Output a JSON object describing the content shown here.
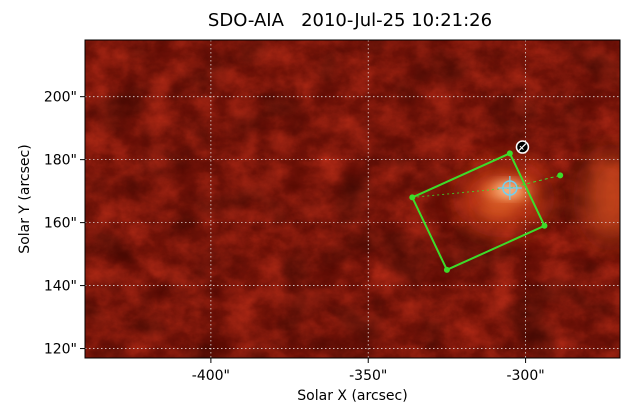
{
  "chart_data": {
    "type": "heatmap",
    "title": "SDO-AIA   2010-Jul-25 10:21:26",
    "xlabel": "Solar X (arcsec)",
    "ylabel": "Solar Y (arcsec)",
    "xlim": [
      -440,
      -270
    ],
    "ylim": [
      117,
      218
    ],
    "x_ticks": [
      {
        "value": -400,
        "label": "-400\""
      },
      {
        "value": -350,
        "label": "-350\""
      },
      {
        "value": -300,
        "label": "-300\""
      }
    ],
    "y_ticks": [
      {
        "value": 120,
        "label": "120\""
      },
      {
        "value": 140,
        "label": "140\""
      },
      {
        "value": 160,
        "label": "160\""
      },
      {
        "value": 180,
        "label": "180\""
      },
      {
        "value": 200,
        "label": "200\""
      }
    ],
    "grid": true,
    "colormap": "sdo aia red",
    "colors": {
      "box": "#3ddc2a",
      "crosshair": "#6fd0f0",
      "grid": "#dcdcdc"
    },
    "overlays": {
      "box_corners": [
        [
          -336,
          168
        ],
        [
          -305,
          182
        ],
        [
          -294,
          159
        ],
        [
          -325,
          145
        ]
      ],
      "center": [
        -305,
        171
      ],
      "ray_end": [
        -289,
        175
      ],
      "marker": [
        -301,
        184
      ]
    },
    "bright_region": {
      "center": [
        -307,
        168
      ],
      "extent": [
        20,
        14
      ]
    }
  }
}
